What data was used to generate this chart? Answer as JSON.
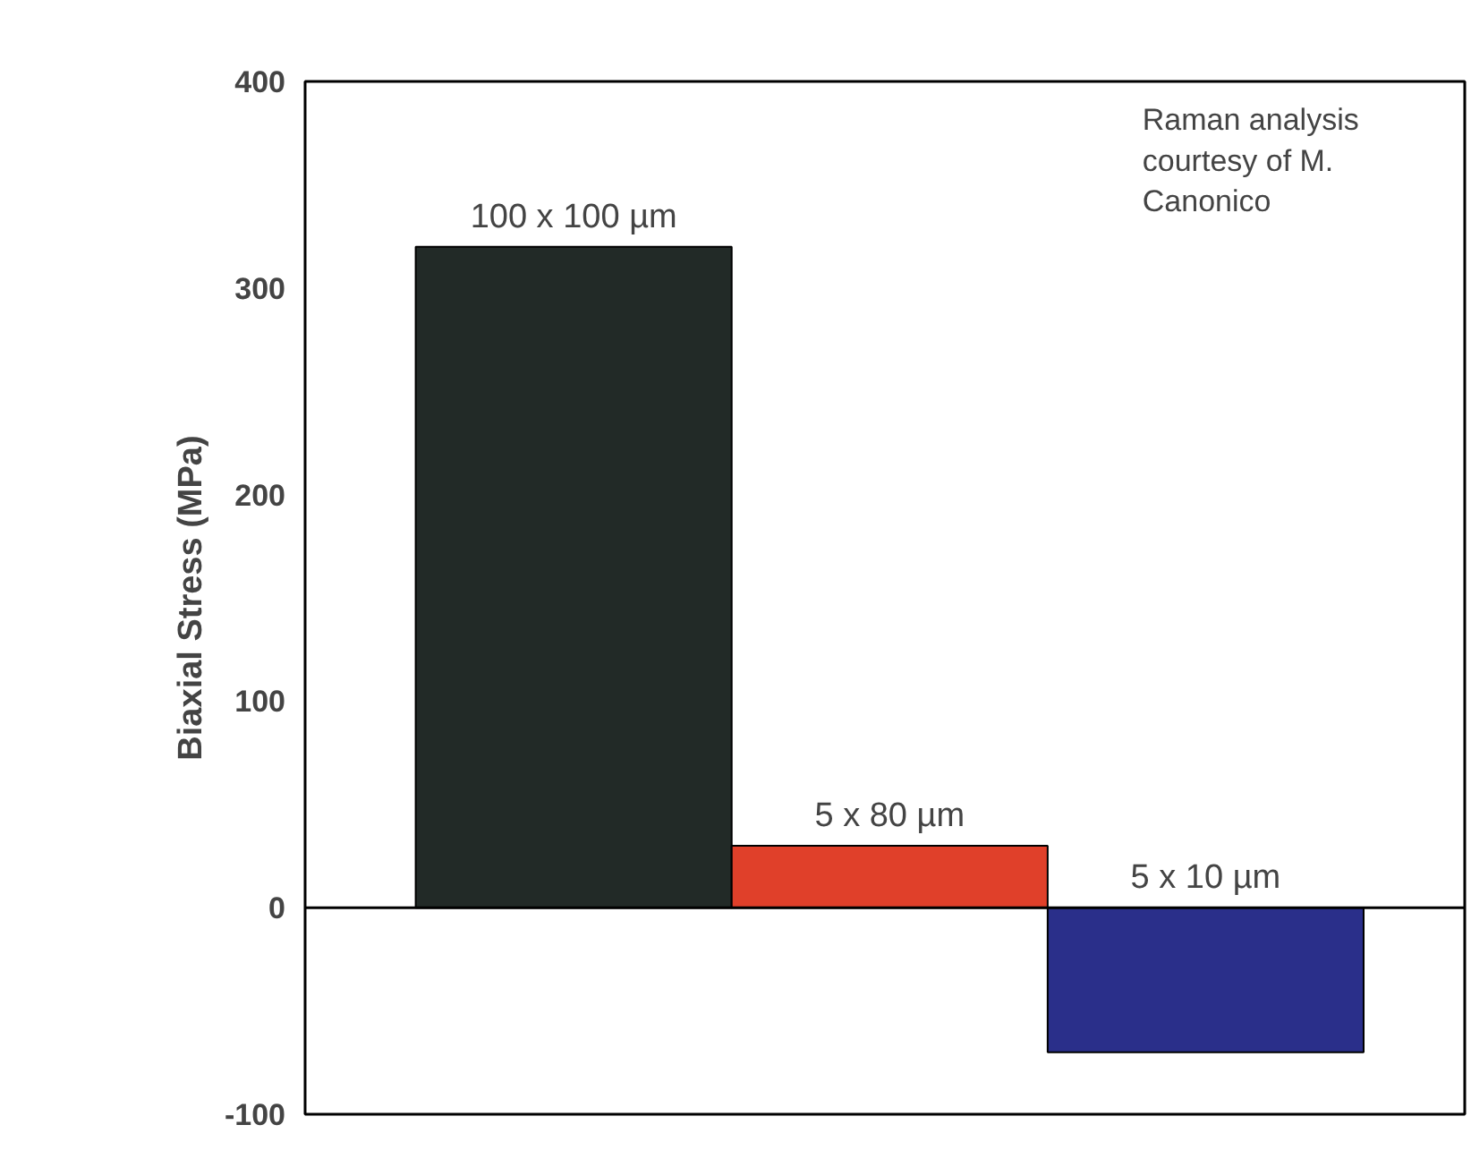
{
  "chart_data": {
    "type": "bar",
    "ylabel": "Biaxial Stress (MPa)",
    "categories": [
      "100 x 100 µm",
      "5 x 80 µm",
      "5 x 10 µm"
    ],
    "values": [
      320,
      30,
      -70
    ],
    "colors": [
      "#222a27",
      "#e0402a",
      "#2a2f8a"
    ],
    "ylim": [
      -100,
      400
    ],
    "yticks": [
      -100,
      0,
      100,
      200,
      300,
      400
    ],
    "grid": false,
    "tick_labels": "y",
    "ref_lines": [
      {
        "axis": "y",
        "value": 0,
        "color": "#000000"
      }
    ],
    "annotations": [
      "Raman analysis\ncourtesy of M.\nCanonico"
    ]
  }
}
